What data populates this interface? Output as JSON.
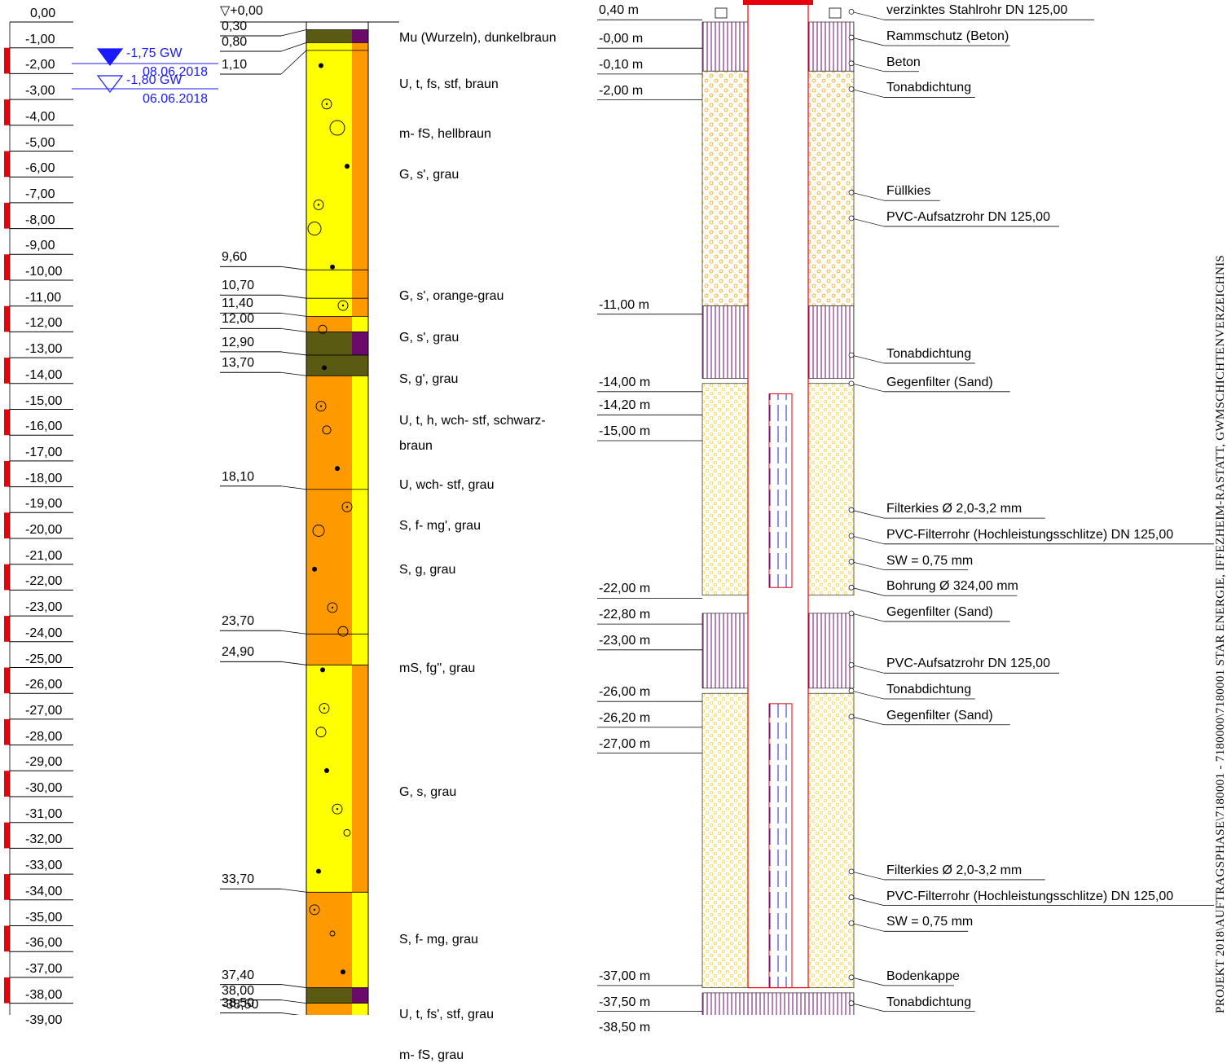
{
  "scale": {
    "labels": [
      "0,00",
      "-1,00",
      "-2,00",
      "-3,00",
      "-4,00",
      "-5,00",
      "-6,00",
      "-7,00",
      "-8,00",
      "-9,00",
      "-10,00",
      "-11,00",
      "-12,00",
      "-13,00",
      "-14,00",
      "-15,00",
      "-16,00",
      "-17,00",
      "-18,00",
      "-19,00",
      "-20,00",
      "-21,00",
      "-22,00",
      "-23,00",
      "-24,00",
      "-25,00",
      "-26,00",
      "-27,00",
      "-28,00",
      "-29,00",
      "-30,00",
      "-31,00",
      "-32,00",
      "-33,00",
      "-34,00",
      "-35,00",
      "-36,00",
      "-37,00",
      "-38,00",
      "-39,00"
    ],
    "color": "#e8000b"
  },
  "groundwater": [
    {
      "level": "-1,75 GW",
      "date": "08.06.2018",
      "depth": 1.75,
      "filled": true
    },
    {
      "level": "-1,80 GW",
      "date": "06.06.2018",
      "depth": 1.8,
      "filled": false
    }
  ],
  "profile": {
    "top_label": "+0,00",
    "bottom_label": "-38,50",
    "depth_labels": [
      {
        "text": "0,30",
        "depth": 0.3
      },
      {
        "text": "0,80",
        "depth": 0.8
      },
      {
        "text": "1,10",
        "depth": 1.1
      },
      {
        "text": "9,60",
        "depth": 9.6
      },
      {
        "text": "10,70",
        "depth": 10.7
      },
      {
        "text": "11,40",
        "depth": 11.4
      },
      {
        "text": "12,00",
        "depth": 12.0
      },
      {
        "text": "12,90",
        "depth": 12.9
      },
      {
        "text": "13,70",
        "depth": 13.7
      },
      {
        "text": "18,10",
        "depth": 18.1
      },
      {
        "text": "23,70",
        "depth": 23.7
      },
      {
        "text": "24,90",
        "depth": 24.9
      },
      {
        "text": "33,70",
        "depth": 33.7
      },
      {
        "text": "37,40",
        "depth": 37.4
      },
      {
        "text": "38,00",
        "depth": 38.0
      },
      {
        "text": "38,50",
        "depth": 38.5
      }
    ],
    "layers": [
      {
        "top": 0,
        "bottom": 0.3,
        "fill": "#ffffff",
        "stripe": "#ffffff"
      },
      {
        "top": 0.3,
        "bottom": 0.8,
        "fill": "#5a5a12",
        "stripe": "#6a0a6a"
      },
      {
        "top": 0.8,
        "bottom": 1.1,
        "fill": "#ffff00",
        "stripe": "#ff9900"
      },
      {
        "top": 1.1,
        "bottom": 9.6,
        "fill": "#ffff00",
        "stripe": "#ff9900"
      },
      {
        "top": 9.6,
        "bottom": 10.7,
        "fill": "#ffff00",
        "stripe": "#ff9900"
      },
      {
        "top": 10.7,
        "bottom": 11.4,
        "fill": "#ffff00",
        "stripe": "#ff9900"
      },
      {
        "top": 11.4,
        "bottom": 12.0,
        "fill": "#ff9900",
        "stripe": "#ffff00"
      },
      {
        "top": 12.0,
        "bottom": 12.9,
        "fill": "#5a5a12",
        "stripe": "#6a0a6a"
      },
      {
        "top": 12.9,
        "bottom": 13.7,
        "fill": "#5a5a12",
        "stripe": "#5a5a12"
      },
      {
        "top": 13.7,
        "bottom": 18.1,
        "fill": "#ff9900",
        "stripe": "#ffff00"
      },
      {
        "top": 18.1,
        "bottom": 23.7,
        "fill": "#ff9900",
        "stripe": "#ffff00"
      },
      {
        "top": 23.7,
        "bottom": 24.9,
        "fill": "#ff9900",
        "stripe": "#ffff00"
      },
      {
        "top": 24.9,
        "bottom": 33.7,
        "fill": "#ffff00",
        "stripe": "#ff9900"
      },
      {
        "top": 33.7,
        "bottom": 37.4,
        "fill": "#ff9900",
        "stripe": "#ffff00"
      },
      {
        "top": 37.4,
        "bottom": 38.0,
        "fill": "#5a5a12",
        "stripe": "#6a0a6a"
      },
      {
        "top": 38.0,
        "bottom": 38.5,
        "fill": "#ff9900",
        "stripe": "#ffff00"
      }
    ],
    "descriptions": [
      {
        "text": "Mu (Wurzeln), dunkelbraun",
        "depth": 0.8
      },
      {
        "text": "U, t, fs, stf, braun",
        "depth": 2.6
      },
      {
        "text": "m- fS, hellbraun",
        "depth": 4.5
      },
      {
        "text": "G, s', grau",
        "depth": 6.1
      },
      {
        "text": "G, s', orange-grau",
        "depth": 10.8
      },
      {
        "text": "G, s', grau",
        "depth": 12.4
      },
      {
        "text": "S, g', grau",
        "depth": 14.0
      },
      {
        "text": "U, t, h, wch- stf, schwarz-",
        "depth": 15.6
      },
      {
        "text": "braun",
        "depth": 16.6
      },
      {
        "text": "U, wch- stf, grau",
        "depth": 18.1
      },
      {
        "text": "S, f- mg', grau",
        "depth": 19.7
      },
      {
        "text": "S, g, grau",
        "depth": 21.4
      },
      {
        "text": "mS, fg'', grau",
        "depth": 25.2
      },
      {
        "text": "G, s, grau",
        "depth": 30.0
      },
      {
        "text": "S, f- mg, grau",
        "depth": 35.7
      },
      {
        "text": "U, t, fs', stf, grau",
        "depth": 38.6
      },
      {
        "text": "m- fS, grau",
        "depth": 40.2
      }
    ]
  },
  "well": {
    "depth_labels": [
      {
        "text": "0,40  m",
        "depth": -0.4
      },
      {
        "text": "-0,00  m",
        "depth": 0.7
      },
      {
        "text": "-0,10  m",
        "depth": 1.7
      },
      {
        "text": "-2,00  m",
        "depth": 2.7
      },
      {
        "text": "-11,00  m",
        "depth": 11.0
      },
      {
        "text": "-14,00  m",
        "depth": 14.0
      },
      {
        "text": "-14,20  m",
        "depth": 14.9
      },
      {
        "text": "-15,00  m",
        "depth": 15.9
      },
      {
        "text": "-22,00  m",
        "depth": 22.0
      },
      {
        "text": "-22,80  m",
        "depth": 23.0
      },
      {
        "text": "-23,00  m",
        "depth": 24.0
      },
      {
        "text": "-26,00  m",
        "depth": 26.0
      },
      {
        "text": "-26,20  m",
        "depth": 27.0
      },
      {
        "text": "-27,00  m",
        "depth": 28.0
      },
      {
        "text": "-37,00  m",
        "depth": 37.0
      },
      {
        "text": "-37,50  m",
        "depth": 38.0
      },
      {
        "text": "-38,50  m",
        "depth": 39.0
      }
    ],
    "annotations": [
      {
        "text": "verzinktes Stahlrohr DN 125,00",
        "depth": -0.4
      },
      {
        "text": "Rammschutz (Beton)",
        "depth": 0.6
      },
      {
        "text": "Beton",
        "depth": 1.6
      },
      {
        "text": "Tonabdichtung",
        "depth": 2.6
      },
      {
        "text": "Füllkies",
        "depth": 6.6
      },
      {
        "text": "PVC-Aufsatzrohr DN 125,00",
        "depth": 7.6
      },
      {
        "text": "Tonabdichtung",
        "depth": 12.9
      },
      {
        "text": "Gegenfilter (Sand)",
        "depth": 14.0
      },
      {
        "text": "Filterkies Ø 2,0-3,2 mm",
        "depth": 18.9
      },
      {
        "text": "PVC-Filterrohr (Hochleistungsschlitze) DN 125,00",
        "depth": 19.9
      },
      {
        "text": "SW = 0,75 mm",
        "depth": 20.9
      },
      {
        "text": "Bohrung Ø 324,00 mm",
        "depth": 21.9
      },
      {
        "text": "Gegenfilter (Sand)",
        "depth": 22.9
      },
      {
        "text": "PVC-Aufsatzrohr DN 125,00",
        "depth": 24.9
      },
      {
        "text": "Tonabdichtung",
        "depth": 25.9
      },
      {
        "text": "Gegenfilter (Sand)",
        "depth": 26.9
      },
      {
        "text": "Filterkies Ø 2,0-3,2 mm",
        "depth": 32.9
      },
      {
        "text": "PVC-Filterrohr (Hochleistungsschlitze) DN 125,00",
        "depth": 33.9
      },
      {
        "text": "SW = 0,75 mm",
        "depth": 34.9
      },
      {
        "text": "Bodenkappe",
        "depth": 37.0
      },
      {
        "text": "Tonabdichtung",
        "depth": 38.0
      }
    ]
  },
  "sidebar_text": "PROJEKT 2018\\AUFTRAGSPHASE\\7180001 - 7180000\\7180001 STAR ENERGIE, IFFEZHEIM-RASTATT, GWMSCHICHTENVERZEICHNIS",
  "colors": {
    "red": "#e8000b",
    "blue": "#1a1aff",
    "purple": "#6a0a6a",
    "olive": "#5a5a12",
    "yellow": "#ffff00",
    "orange": "#ff9900"
  }
}
